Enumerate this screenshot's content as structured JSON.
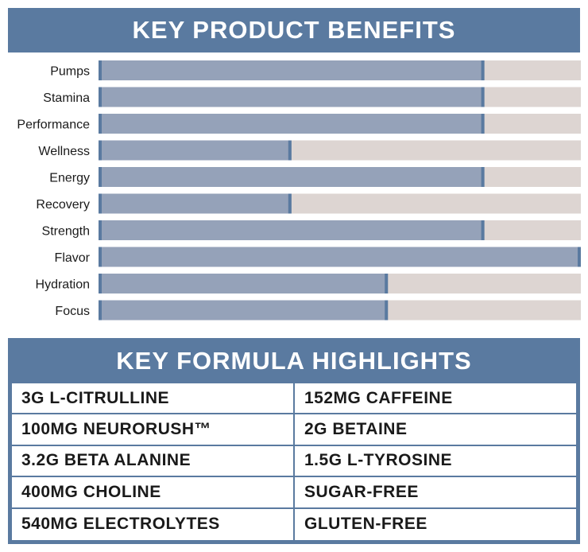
{
  "benefits": {
    "title": "KEY PRODUCT BENEFITS"
  },
  "chart_data": {
    "type": "bar",
    "orientation": "horizontal",
    "categories": [
      "Pumps",
      "Stamina",
      "Performance",
      "Wellness",
      "Energy",
      "Recovery",
      "Strength",
      "Flavor",
      "Hydration",
      "Focus"
    ],
    "values": [
      80,
      80,
      80,
      40,
      80,
      40,
      80,
      100,
      60,
      60
    ],
    "xlim": [
      0,
      100
    ],
    "grid": false,
    "legend": "none",
    "colors": {
      "fill": "#95a2b9",
      "track": "#ddd5d2",
      "edge": "#5a7aa0"
    }
  },
  "formula": {
    "title": "KEY FORMULA HIGHLIGHTS",
    "rows": [
      [
        "3G L-CITRULLINE",
        "152MG CAFFEINE"
      ],
      [
        "100MG NEURORUSH™",
        "2G BETAINE"
      ],
      [
        "3.2G BETA ALANINE",
        "1.5G L-TYROSINE"
      ],
      [
        "400MG CHOLINE",
        "SUGAR-FREE"
      ],
      [
        "540MG ELECTROLYTES",
        "GLUTEN-FREE"
      ]
    ]
  }
}
